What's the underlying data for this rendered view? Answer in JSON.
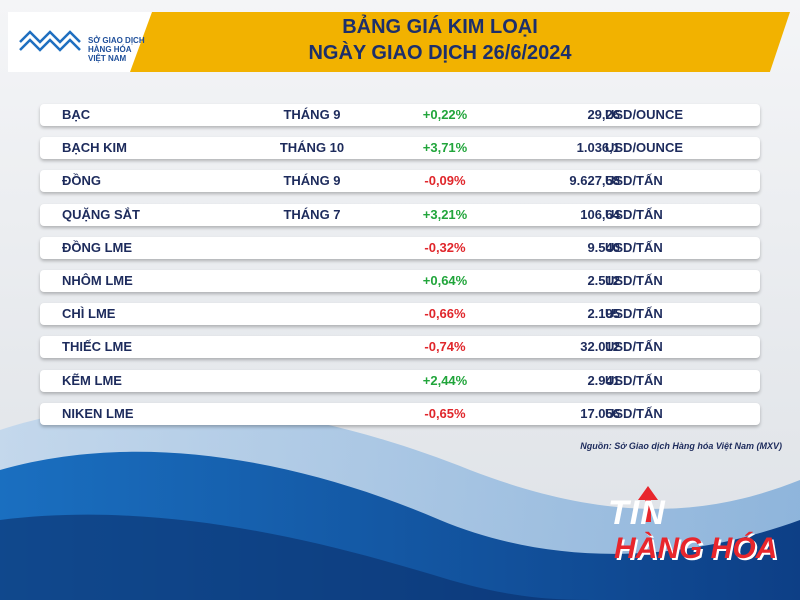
{
  "header": {
    "logo_lines": [
      "SỞ GIAO DỊCH",
      "HÀNG HÓA",
      "VIỆT NAM"
    ],
    "title_line1": "BẢNG GIÁ KIM LOẠI",
    "title_line2": "NGÀY GIAO DỊCH 26/6/2024"
  },
  "colors": {
    "accent_yellow": "#f2b200",
    "navy": "#1c2f6b",
    "up_green": "#21a53b",
    "down_red": "#e0262b"
  },
  "table": {
    "rows": [
      {
        "name": "BẠC",
        "month": "THÁNG 9",
        "change": "+0,22%",
        "direction": "up",
        "price": "29,26",
        "unit": "USD/OUNCE"
      },
      {
        "name": "BẠCH KIM",
        "month": "THÁNG 10",
        "change": "+3,71%",
        "direction": "up",
        "price": "1.036,1",
        "unit": "USD/OUNCE"
      },
      {
        "name": "ĐỒNG",
        "month": "THÁNG 9",
        "change": "-0,09%",
        "direction": "down",
        "price": "9.627,58",
        "unit": "USD/TẤN"
      },
      {
        "name": "QUẶNG SẮT",
        "month": "THÁNG 7",
        "change": "+3,21%",
        "direction": "up",
        "price": "106,64",
        "unit": "USD/TẤN"
      },
      {
        "name": "ĐỒNG LME",
        "month": "",
        "change": "-0,32%",
        "direction": "down",
        "price": "9.540",
        "unit": "USD/TẤN"
      },
      {
        "name": "NHÔM LME",
        "month": "",
        "change": "+0,64%",
        "direction": "up",
        "price": "2.512",
        "unit": "USD/TẤN"
      },
      {
        "name": "CHÌ LME",
        "month": "",
        "change": "-0,66%",
        "direction": "down",
        "price": "2.195",
        "unit": "USD/TẤN"
      },
      {
        "name": "THIẾC LME",
        "month": "",
        "change": "-0,74%",
        "direction": "down",
        "price": "32.012",
        "unit": "USD/TẤN"
      },
      {
        "name": "KẼM LME",
        "month": "",
        "change": "+2,44%",
        "direction": "up",
        "price": "2.941",
        "unit": "USD/TẤN"
      },
      {
        "name": "NIKEN LME",
        "month": "",
        "change": "-0,65%",
        "direction": "down",
        "price": "17.056",
        "unit": "USD/TẤN"
      }
    ]
  },
  "source": "Nguồn: Sở Giao dịch Hàng hóa Việt Nam (MXV)",
  "brand": {
    "line1": "TIN",
    "line2": "HÀNG HÓA"
  }
}
